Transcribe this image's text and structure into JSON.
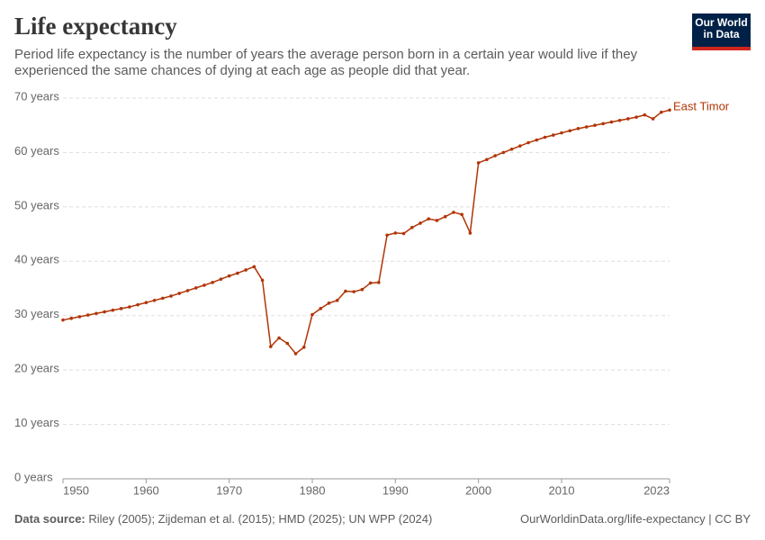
{
  "logo": [
    "Our World",
    "in Data"
  ],
  "chart_data": {
    "type": "line",
    "title": "Life expectancy",
    "subtitle": "Period life expectancy is the number of years the average person born in a certain year would live if they experienced the same chances of dying at each age as people did that year.",
    "source_label": "Data source:",
    "source": "Riley (2005); Zijdeman et al. (2015); HMD (2025); UN WPP (2024)",
    "url": "OurWorldinData.org/life-expectancy | CC BY",
    "x": [
      1950,
      1951,
      1952,
      1953,
      1954,
      1955,
      1956,
      1957,
      1958,
      1959,
      1960,
      1961,
      1962,
      1963,
      1964,
      1965,
      1966,
      1967,
      1968,
      1969,
      1970,
      1971,
      1972,
      1973,
      1974,
      1975,
      1976,
      1977,
      1978,
      1979,
      1980,
      1981,
      1982,
      1983,
      1984,
      1985,
      1986,
      1987,
      1988,
      1989,
      1990,
      1991,
      1992,
      1993,
      1994,
      1995,
      1996,
      1997,
      1998,
      1999,
      2000,
      2001,
      2002,
      2003,
      2004,
      2005,
      2006,
      2007,
      2008,
      2009,
      2010,
      2011,
      2012,
      2013,
      2014,
      2015,
      2016,
      2017,
      2018,
      2019,
      2020,
      2021,
      2022,
      2023
    ],
    "series": [
      {
        "name": "East Timor",
        "color": "#b13507",
        "values": [
          29.2,
          29.5,
          29.8,
          30.1,
          30.4,
          30.7,
          31.0,
          31.3,
          31.6,
          32.0,
          32.4,
          32.8,
          33.2,
          33.6,
          34.1,
          34.6,
          35.1,
          35.6,
          36.1,
          36.7,
          37.3,
          37.8,
          38.4,
          39.0,
          36.5,
          24.3,
          25.9,
          24.9,
          23.0,
          24.2,
          30.2,
          31.3,
          32.3,
          32.8,
          34.5,
          34.4,
          34.8,
          36.0,
          36.1,
          44.8,
          45.2,
          45.1,
          46.2,
          47.0,
          47.8,
          47.5,
          48.2,
          49.0,
          48.6,
          45.2,
          58.1,
          58.7,
          59.4,
          60.0,
          60.6,
          61.2,
          61.8,
          62.3,
          62.8,
          63.2,
          63.6,
          64.0,
          64.4,
          64.7,
          65.0,
          65.3,
          65.6,
          65.9,
          66.2,
          66.5,
          66.9,
          66.2,
          67.4,
          67.8
        ]
      }
    ],
    "xlim": [
      1950,
      2023
    ],
    "xticks": [
      1950,
      1960,
      1970,
      1980,
      1990,
      2000,
      2010,
      2023
    ],
    "ylim": [
      0,
      70
    ],
    "yticks": [
      {
        "value": 0,
        "label": "0 years"
      },
      {
        "value": 10,
        "label": "10 years"
      },
      {
        "value": 20,
        "label": "20 years"
      },
      {
        "value": 30,
        "label": "30 years"
      },
      {
        "value": 40,
        "label": "40 years"
      },
      {
        "value": 50,
        "label": "50 years"
      },
      {
        "value": 60,
        "label": "60 years"
      },
      {
        "value": 70,
        "label": "70 years"
      }
    ],
    "grid": true
  }
}
